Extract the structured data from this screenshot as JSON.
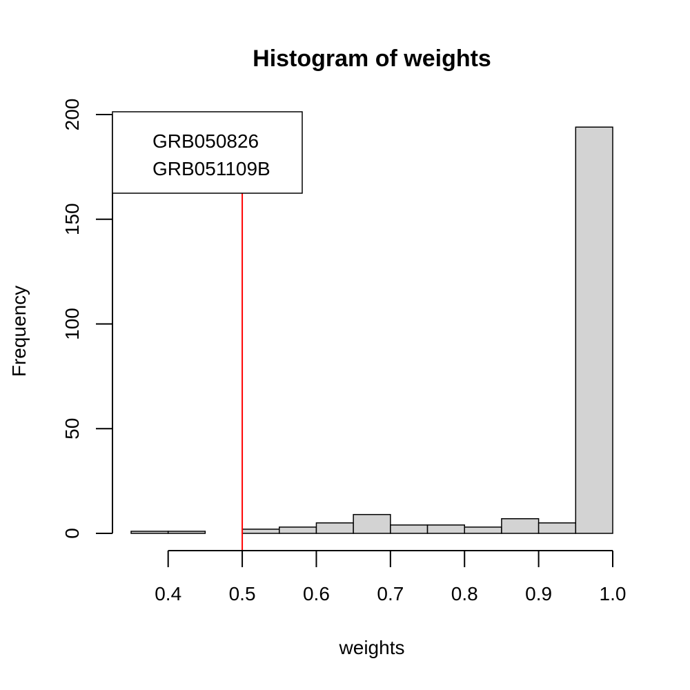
{
  "chart_data": {
    "type": "bar",
    "title": "Histogram of weights",
    "xlabel": "weights",
    "ylabel": "Frequency",
    "xlim": [
      0.35,
      1.0
    ],
    "ylim": [
      0,
      200
    ],
    "x_ticks": [
      0.4,
      0.5,
      0.6,
      0.7,
      0.8,
      0.9,
      1.0
    ],
    "x_tick_labels": [
      "0.4",
      "0.5",
      "0.6",
      "0.7",
      "0.8",
      "0.9",
      "1.0"
    ],
    "y_ticks": [
      0,
      50,
      100,
      150,
      200
    ],
    "y_tick_labels": [
      "0",
      "50",
      "100",
      "150",
      "200"
    ],
    "bins": [
      {
        "start": 0.35,
        "end": 0.4,
        "count": 1
      },
      {
        "start": 0.4,
        "end": 0.45,
        "count": 1
      },
      {
        "start": 0.45,
        "end": 0.5,
        "count": 0
      },
      {
        "start": 0.5,
        "end": 0.55,
        "count": 2
      },
      {
        "start": 0.55,
        "end": 0.6,
        "count": 3
      },
      {
        "start": 0.6,
        "end": 0.65,
        "count": 5
      },
      {
        "start": 0.65,
        "end": 0.7,
        "count": 9
      },
      {
        "start": 0.7,
        "end": 0.75,
        "count": 4
      },
      {
        "start": 0.75,
        "end": 0.8,
        "count": 4
      },
      {
        "start": 0.8,
        "end": 0.85,
        "count": 3
      },
      {
        "start": 0.85,
        "end": 0.9,
        "count": 7
      },
      {
        "start": 0.9,
        "end": 0.95,
        "count": 5
      },
      {
        "start": 0.95,
        "end": 1.0,
        "count": 194
      }
    ],
    "bar_fill": "#d3d3d3",
    "bar_stroke": "#000000",
    "reference_line": {
      "x": 0.5,
      "color": "#ff0000"
    },
    "annotation": {
      "lines": [
        "GRB050826",
        "GRB051109B"
      ],
      "placement": "top-left"
    },
    "grid": false
  }
}
